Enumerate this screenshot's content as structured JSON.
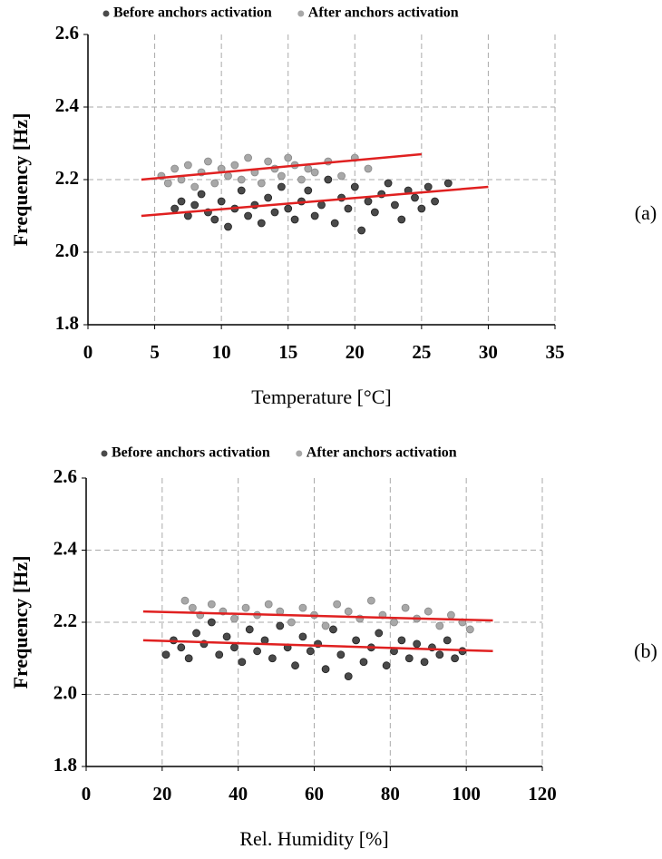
{
  "chart_data": [
    {
      "type": "scatter",
      "panel_label": "(a)",
      "xlabel": "Temperature [°C]",
      "ylabel": "Frequency [Hz]",
      "xlim": [
        0,
        35
      ],
      "xticks": [
        0,
        5,
        10,
        15,
        20,
        25,
        30,
        35
      ],
      "ylim": [
        1.8,
        2.6
      ],
      "yticks": [
        1.8,
        {
          "value": 2,
          "label": "2.0"
        },
        2.2,
        2.4,
        2.6
      ],
      "grid": true,
      "legend": "top",
      "series": [
        {
          "name": "Before anchors activation",
          "color": "#4a4a4a",
          "x": [
            6.5,
            7,
            7.5,
            8,
            8.5,
            9,
            9.5,
            10,
            10.5,
            11,
            11.5,
            12,
            12.5,
            13,
            13.5,
            14,
            14.5,
            15,
            15.5,
            16,
            16.5,
            17,
            17.5,
            18,
            18.5,
            19,
            19.5,
            20,
            20.5,
            21,
            21.5,
            22,
            22.5,
            23,
            23.5,
            24,
            24.5,
            25,
            25.5,
            26,
            27
          ],
          "y": [
            2.12,
            2.14,
            2.1,
            2.13,
            2.16,
            2.11,
            2.09,
            2.14,
            2.07,
            2.12,
            2.17,
            2.1,
            2.13,
            2.08,
            2.15,
            2.11,
            2.18,
            2.12,
            2.09,
            2.14,
            2.17,
            2.1,
            2.13,
            2.2,
            2.08,
            2.15,
            2.12,
            2.18,
            2.06,
            2.14,
            2.11,
            2.16,
            2.19,
            2.13,
            2.09,
            2.17,
            2.15,
            2.12,
            2.18,
            2.14,
            2.19
          ]
        },
        {
          "name": "After anchors activation",
          "color": "#a8a8a8",
          "x": [
            5.5,
            6,
            6.5,
            7,
            7.5,
            8,
            8.5,
            9,
            9.5,
            10,
            10.5,
            11,
            11.5,
            12,
            12.5,
            13,
            13.5,
            14,
            14.5,
            15,
            15.5,
            16,
            16.5,
            17,
            18,
            19,
            20,
            21
          ],
          "y": [
            2.21,
            2.19,
            2.23,
            2.2,
            2.24,
            2.18,
            2.22,
            2.25,
            2.19,
            2.23,
            2.21,
            2.24,
            2.2,
            2.26,
            2.22,
            2.19,
            2.25,
            2.23,
            2.21,
            2.26,
            2.24,
            2.2,
            2.23,
            2.22,
            2.25,
            2.21,
            2.26,
            2.23
          ]
        }
      ],
      "trendlines": [
        {
          "color": "#e02020",
          "x": [
            4,
            30
          ],
          "y": [
            2.1,
            2.18
          ]
        },
        {
          "color": "#e02020",
          "x": [
            4,
            25
          ],
          "y": [
            2.2,
            2.27
          ]
        }
      ]
    },
    {
      "type": "scatter",
      "panel_label": "(b)",
      "xlabel": "Rel. Humidity [%]",
      "ylabel": "Frequency [Hz]",
      "xlim": [
        0,
        120
      ],
      "xticks": [
        0,
        20,
        40,
        60,
        80,
        100,
        120
      ],
      "ylim": [
        1.8,
        2.6
      ],
      "yticks": [
        1.8,
        {
          "value": 2,
          "label": "2.0"
        },
        2.2,
        2.4,
        2.6
      ],
      "grid": true,
      "legend": "top",
      "series": [
        {
          "name": "Before anchors activation",
          "color": "#4a4a4a",
          "x": [
            21,
            23,
            25,
            27,
            29,
            31,
            33,
            35,
            37,
            39,
            41,
            43,
            45,
            47,
            49,
            51,
            53,
            55,
            57,
            59,
            61,
            63,
            65,
            67,
            69,
            71,
            73,
            75,
            77,
            79,
            81,
            83,
            85,
            87,
            89,
            91,
            93,
            95,
            97,
            99
          ],
          "y": [
            2.11,
            2.15,
            2.13,
            2.1,
            2.17,
            2.14,
            2.2,
            2.11,
            2.16,
            2.13,
            2.09,
            2.18,
            2.12,
            2.15,
            2.1,
            2.19,
            2.13,
            2.08,
            2.16,
            2.12,
            2.14,
            2.07,
            2.18,
            2.11,
            2.05,
            2.15,
            2.09,
            2.13,
            2.17,
            2.08,
            2.12,
            2.15,
            2.1,
            2.14,
            2.09,
            2.13,
            2.11,
            2.15,
            2.1,
            2.12
          ]
        },
        {
          "name": "After anchors activation",
          "color": "#a8a8a8",
          "x": [
            26,
            28,
            30,
            33,
            36,
            39,
            42,
            45,
            48,
            51,
            54,
            57,
            60,
            63,
            66,
            69,
            72,
            75,
            78,
            81,
            84,
            87,
            90,
            93,
            96,
            99,
            101
          ],
          "y": [
            2.26,
            2.24,
            2.22,
            2.25,
            2.23,
            2.21,
            2.24,
            2.22,
            2.25,
            2.23,
            2.2,
            2.24,
            2.22,
            2.19,
            2.25,
            2.23,
            2.21,
            2.26,
            2.22,
            2.2,
            2.24,
            2.21,
            2.23,
            2.19,
            2.22,
            2.2,
            2.18
          ]
        }
      ],
      "trendlines": [
        {
          "color": "#e02020",
          "x": [
            15,
            107
          ],
          "y": [
            2.15,
            2.12
          ]
        },
        {
          "color": "#e02020",
          "x": [
            15,
            107
          ],
          "y": [
            2.23,
            2.205
          ]
        }
      ]
    }
  ]
}
